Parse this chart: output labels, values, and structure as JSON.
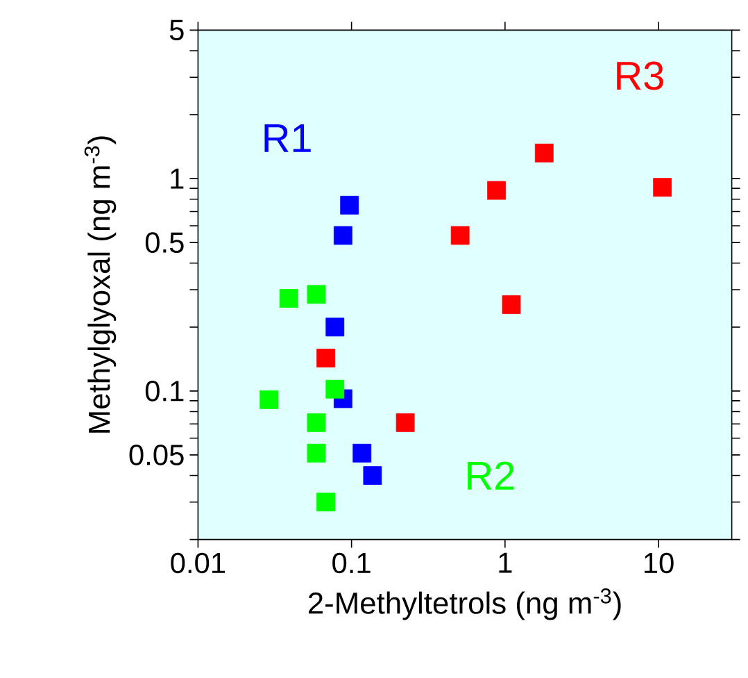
{
  "chart_data": {
    "type": "scatter",
    "xlabel": "2-Methyltetrols (ng m$^{-3}$)",
    "ylabel": "Methylglyoxal (ng m$^{-3}$)",
    "log": "xy",
    "grid": false,
    "legend": false,
    "marker": "square",
    "xlim": [
      0.01,
      30
    ],
    "ylim": [
      0.02,
      5
    ],
    "xticks": [
      0.01,
      0.1,
      1,
      10
    ],
    "yticks": [
      {
        "value": 0.02,
        "label": null
      },
      {
        "value": 0.03,
        "label": null
      },
      {
        "value": 0.04,
        "label": null
      },
      0.05,
      {
        "value": 0.06,
        "label": null
      },
      {
        "value": 0.07,
        "label": null
      },
      {
        "value": 0.08,
        "label": null
      },
      {
        "value": 0.09,
        "label": null
      },
      0.1,
      {
        "value": 0.2,
        "label": null
      },
      {
        "value": 0.3,
        "label": null
      },
      {
        "value": 0.4,
        "label": null
      },
      0.5,
      {
        "value": 0.6,
        "label": null
      },
      {
        "value": 0.7,
        "label": null
      },
      {
        "value": 0.8,
        "label": null
      },
      {
        "value": 0.9,
        "label": null
      },
      1,
      {
        "value": 2,
        "label": null
      },
      {
        "value": 3,
        "label": null
      },
      {
        "value": 4,
        "label": null
      },
      5
    ],
    "series": [
      {
        "name": "R1",
        "color": "#0000ff",
        "x": [
          0.097,
          0.088,
          0.078,
          0.088,
          0.117,
          0.137
        ],
        "values": [
          0.75,
          0.54,
          0.2,
          0.092,
          0.051,
          0.04
        ]
      },
      {
        "name": "R2",
        "color": "#00ff00",
        "x": [
          0.039,
          0.059,
          0.078,
          0.029,
          0.059,
          0.059,
          0.068
        ],
        "values": [
          0.273,
          0.285,
          0.102,
          0.091,
          0.071,
          0.051,
          0.03
        ]
      },
      {
        "name": "R3",
        "color": "#ff0000",
        "x": [
          1.8,
          0.88,
          10.6,
          0.51,
          1.1,
          0.068,
          0.224
        ],
        "values": [
          1.32,
          0.88,
          0.91,
          0.54,
          0.255,
          0.143,
          0.071
        ]
      }
    ]
  }
}
